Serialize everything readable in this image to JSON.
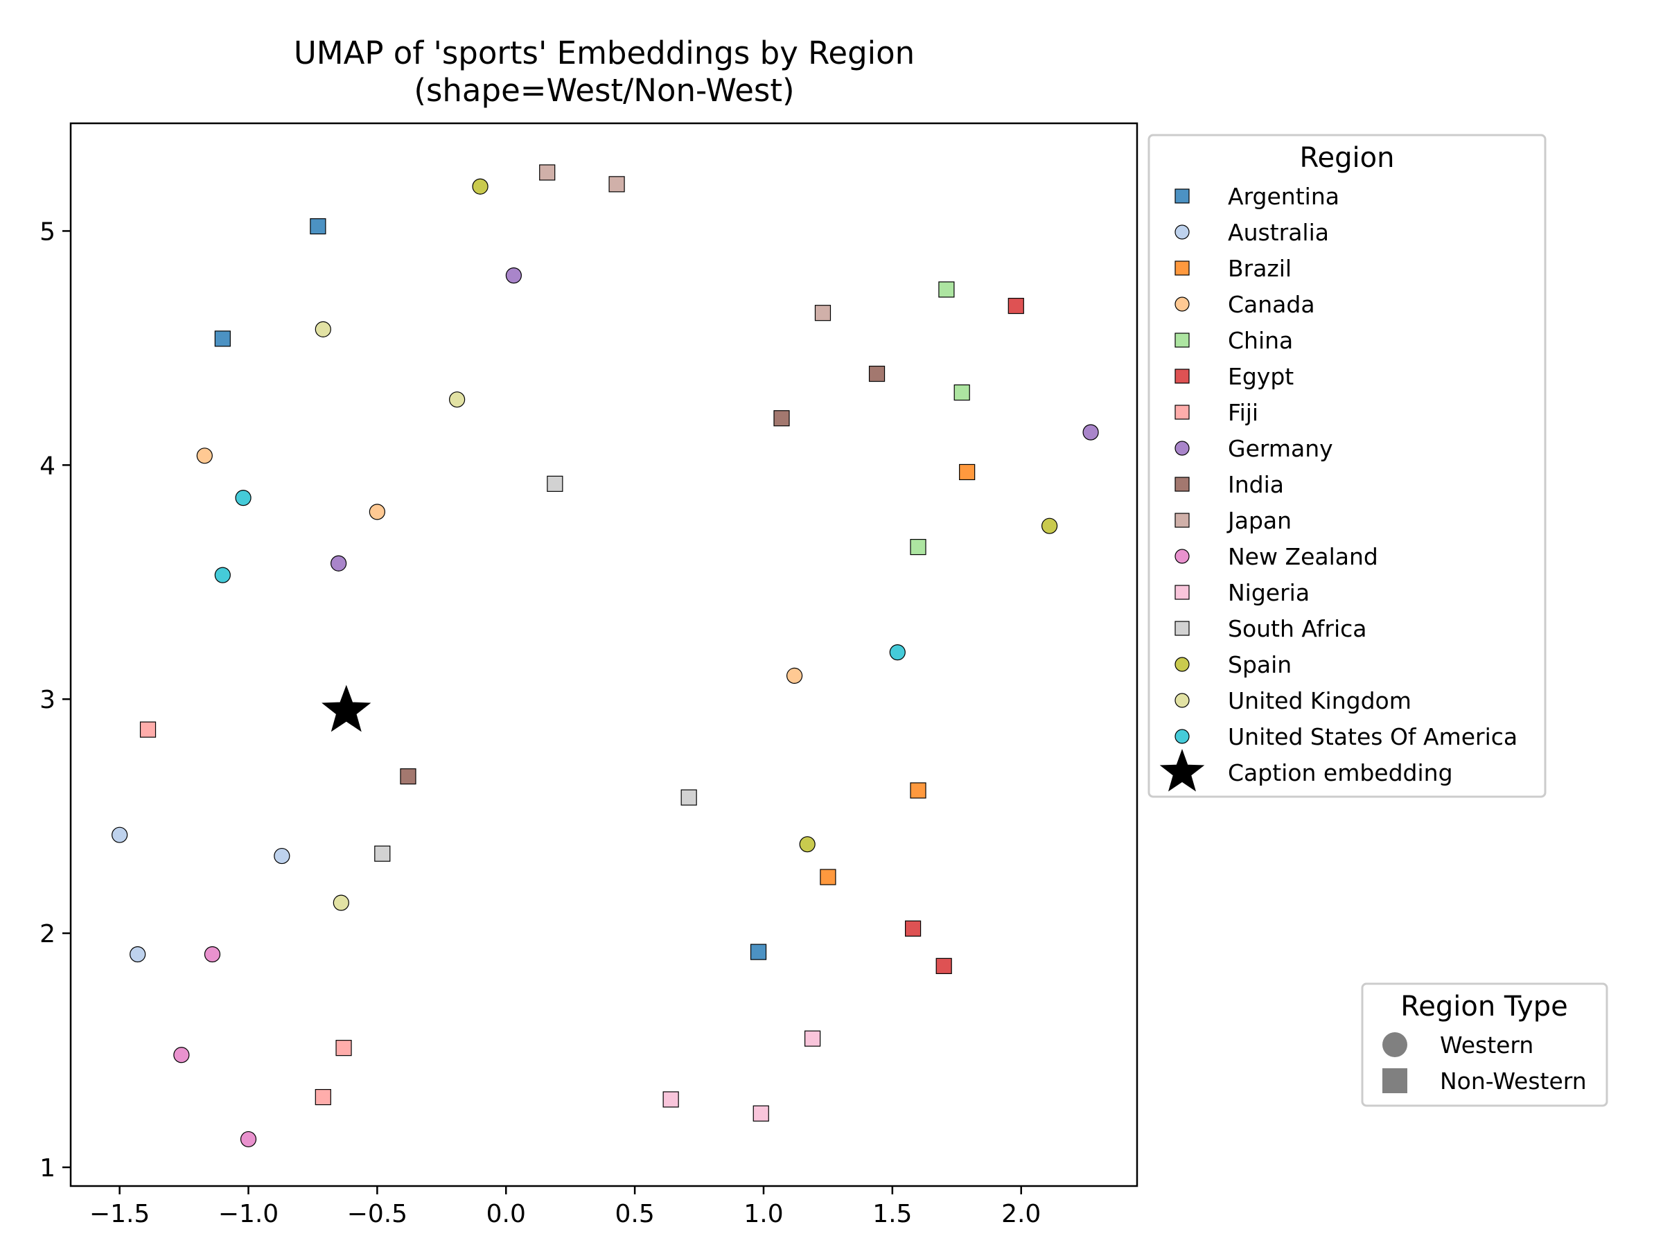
{
  "chart_data": {
    "type": "scatter",
    "title": "UMAP of 'sports' Embeddings by Region",
    "subtitle": "(shape=West/Non-West)",
    "xlabel": "",
    "ylabel": "",
    "xlim": [
      -1.69,
      2.45
    ],
    "ylim": [
      0.92,
      5.46
    ],
    "xticks": [
      -1.5,
      -1.0,
      -0.5,
      0.0,
      0.5,
      1.0,
      1.5,
      2.0
    ],
    "xtick_labels": [
      "−1.5",
      "−1.0",
      "−0.5",
      "0.0",
      "0.5",
      "1.0",
      "1.5",
      "2.0"
    ],
    "yticks": [
      1,
      2,
      3,
      4,
      5
    ],
    "ytick_labels": [
      "1",
      "2",
      "3",
      "4",
      "5"
    ],
    "grid": false,
    "legend": {
      "title": "Region",
      "placement": "outside-top-right",
      "caption_label": "Caption embedding"
    },
    "shape_legend": {
      "title": "Region Type",
      "placement": "outside-bottom-right",
      "items": [
        {
          "label": "Western",
          "marker": "circle"
        },
        {
          "label": "Non-Western",
          "marker": "square"
        }
      ]
    },
    "caption_point": {
      "x": -0.62,
      "y": 2.95,
      "marker": "star",
      "color": "#000000"
    },
    "series": [
      {
        "name": "Argentina",
        "color": "#1f77b4",
        "marker": "square",
        "points": [
          [
            -0.73,
            5.02
          ],
          [
            -1.1,
            4.54
          ],
          [
            0.98,
            1.92
          ]
        ]
      },
      {
        "name": "Australia",
        "color": "#aec7e8",
        "marker": "circle",
        "points": [
          [
            -1.5,
            2.42
          ],
          [
            -0.87,
            2.33
          ],
          [
            -1.43,
            1.91
          ]
        ]
      },
      {
        "name": "Brazil",
        "color": "#ff7f0e",
        "marker": "square",
        "points": [
          [
            1.79,
            3.97
          ],
          [
            1.6,
            2.61
          ],
          [
            1.25,
            2.24
          ]
        ]
      },
      {
        "name": "Canada",
        "color": "#ffbb78",
        "marker": "circle",
        "points": [
          [
            -1.17,
            4.04
          ],
          [
            -0.5,
            3.8
          ],
          [
            1.12,
            3.1
          ]
        ]
      },
      {
        "name": "China",
        "color": "#98df8a",
        "marker": "square",
        "points": [
          [
            1.71,
            4.75
          ],
          [
            1.77,
            4.31
          ],
          [
            1.6,
            3.65
          ]
        ]
      },
      {
        "name": "Egypt",
        "color": "#d62728",
        "marker": "square",
        "points": [
          [
            1.98,
            4.68
          ],
          [
            1.58,
            2.02
          ],
          [
            1.7,
            1.86
          ]
        ]
      },
      {
        "name": "Fiji",
        "color": "#ff9896",
        "marker": "square",
        "points": [
          [
            -1.39,
            2.87
          ],
          [
            -0.63,
            1.51
          ],
          [
            -0.71,
            1.3
          ]
        ]
      },
      {
        "name": "Germany",
        "color": "#9467bd",
        "marker": "circle",
        "points": [
          [
            0.03,
            4.81
          ],
          [
            2.27,
            4.14
          ],
          [
            -0.65,
            3.58
          ]
        ]
      },
      {
        "name": "India",
        "color": "#8c564b",
        "marker": "square",
        "points": [
          [
            1.44,
            4.39
          ],
          [
            1.07,
            4.2
          ],
          [
            -0.38,
            2.67
          ]
        ]
      },
      {
        "name": "Japan",
        "color": "#c49c94",
        "marker": "square",
        "points": [
          [
            0.16,
            5.25
          ],
          [
            0.43,
            5.2
          ],
          [
            1.23,
            4.65
          ]
        ]
      },
      {
        "name": "New Zealand",
        "color": "#e377c2",
        "marker": "circle",
        "points": [
          [
            -1.14,
            1.91
          ],
          [
            -1.26,
            1.48
          ],
          [
            -1.0,
            1.12
          ]
        ]
      },
      {
        "name": "Nigeria",
        "color": "#f7b6d2",
        "marker": "square",
        "points": [
          [
            1.19,
            1.55
          ],
          [
            0.64,
            1.29
          ],
          [
            0.99,
            1.23
          ]
        ]
      },
      {
        "name": "South Africa",
        "color": "#c7c7c7",
        "marker": "square",
        "points": [
          [
            0.19,
            3.92
          ],
          [
            0.71,
            2.58
          ],
          [
            -0.48,
            2.34
          ]
        ]
      },
      {
        "name": "Spain",
        "color": "#bcbd22",
        "marker": "circle",
        "points": [
          [
            -0.1,
            5.19
          ],
          [
            2.11,
            3.74
          ],
          [
            1.17,
            2.38
          ]
        ]
      },
      {
        "name": "United Kingdom",
        "color": "#dbdb8d",
        "marker": "circle",
        "points": [
          [
            -0.71,
            4.58
          ],
          [
            -0.19,
            4.28
          ],
          [
            -0.64,
            2.13
          ]
        ]
      },
      {
        "name": "United States Of America",
        "color": "#17becf",
        "marker": "circle",
        "points": [
          [
            -1.02,
            3.86
          ],
          [
            -1.1,
            3.53
          ],
          [
            1.52,
            3.2
          ]
        ]
      }
    ]
  }
}
